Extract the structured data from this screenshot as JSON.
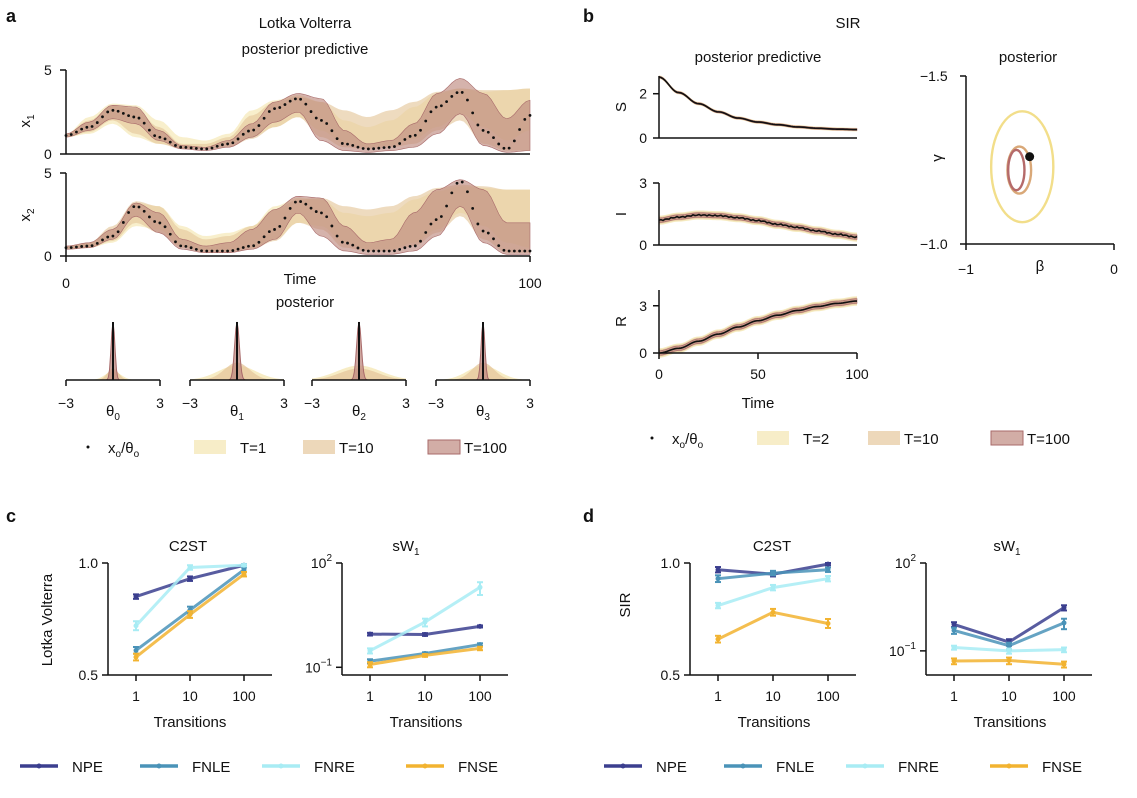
{
  "panels": {
    "a": {
      "letter": "a",
      "title": "Lotka Volterra",
      "subtitle": "posterior predictive",
      "xlabel": "Time",
      "posterior_title": "posterior",
      "y_labels": [
        "x",
        "x"
      ],
      "y_label_subs": [
        "1",
        "2"
      ],
      "x_ticks": [
        "0",
        "100"
      ],
      "theta_labels": [
        "θ",
        "θ",
        "θ",
        "θ"
      ],
      "theta_subs": [
        "0",
        "1",
        "2",
        "3"
      ],
      "theta_ticks": [
        "−3",
        "3"
      ],
      "legend": {
        "obs": "x",
        "obs_sub": "o",
        "obs_sep": "/θ",
        "obs_sub2": "o",
        "items": [
          "T=1",
          "T=10",
          "T=100"
        ]
      }
    },
    "b": {
      "letter": "b",
      "title": "SIR",
      "subtitle": "posterior predictive",
      "posterior_title": "posterior",
      "xlabel": "Time",
      "y_labels": [
        "S",
        "I",
        "R"
      ],
      "x_ticks": [
        "0",
        "50",
        "100"
      ],
      "gamma_label": "γ",
      "beta_label": "β",
      "legend": {
        "obs": "x",
        "obs_sub": "o",
        "obs_sep": "/θ",
        "obs_sub2": "o",
        "items": [
          "T=2",
          "T=10",
          "T=100"
        ]
      }
    },
    "c": {
      "letter": "c",
      "ylabel": "Lotka Volterra",
      "xlabel": "Transitions",
      "c2st_title": "C2ST",
      "sw_title": "sW",
      "sw_sub": "1"
    },
    "d": {
      "letter": "d",
      "ylabel": "SIR",
      "xlabel": "Transitions",
      "c2st_title": "C2ST",
      "sw_title": "sW",
      "sw_sub": "1"
    }
  },
  "method_legend": [
    "NPE",
    "FNLE",
    "FNRE",
    "FNSE"
  ],
  "colors": {
    "NPE": "#3b3f8f",
    "FNLE": "#4a93b8",
    "FNRE": "#a8ecf4",
    "FNSE": "#f2b330",
    "band_light": "#f4e6b0",
    "band_mid": "#e5c79c",
    "band_dark": "#bf8a80",
    "band_dark_edge": "#a86a6a",
    "observed": "#111111"
  },
  "chart_data": [
    {
      "id": "a-x1",
      "type": "area",
      "ylabel": "x1",
      "xlim": [
        0,
        100
      ],
      "ylim": [
        0,
        5
      ],
      "y_ticks": [
        0,
        5
      ],
      "x": [
        0,
        5,
        10,
        15,
        20,
        25,
        30,
        35,
        40,
        45,
        50,
        55,
        60,
        65,
        70,
        75,
        80,
        85,
        90,
        95,
        100
      ],
      "observed": [
        1.1,
        1.6,
        2.6,
        2.2,
        1.0,
        0.4,
        0.3,
        0.6,
        1.4,
        2.7,
        3.3,
        2.0,
        0.6,
        0.3,
        0.4,
        1.1,
        2.8,
        3.7,
        1.4,
        0.3,
        2.3
      ],
      "bands": [
        {
          "name": "T=1",
          "low": [
            1.0,
            1.2,
            1.8,
            1.0,
            0.6,
            0.4,
            0.4,
            0.6,
            1.0,
            1.6,
            2.2,
            1.4,
            0.6,
            0.4,
            0.5,
            0.9,
            1.6,
            2.4,
            1.6,
            0.8,
            1.4
          ],
          "high": [
            1.2,
            2.2,
            3.0,
            2.9,
            2.0,
            1.0,
            0.8,
            1.2,
            2.6,
            3.2,
            3.5,
            3.1,
            2.0,
            1.6,
            2.0,
            2.8,
            3.6,
            3.9,
            3.7,
            3.8,
            3.9
          ]
        },
        {
          "name": "T=10",
          "low": [
            1.0,
            1.3,
            2.0,
            1.2,
            0.6,
            0.3,
            0.3,
            0.4,
            0.9,
            1.6,
            2.2,
            1.0,
            0.4,
            0.3,
            0.4,
            0.6,
            1.4,
            2.0,
            0.6,
            0.2,
            0.2
          ],
          "high": [
            1.2,
            2.0,
            2.9,
            2.7,
            1.6,
            0.6,
            0.6,
            1.0,
            2.3,
            3.1,
            3.4,
            3.1,
            2.6,
            2.2,
            2.6,
            3.1,
            3.7,
            3.9,
            3.8,
            3.8,
            3.9
          ]
        },
        {
          "name": "T=100",
          "low": [
            1.0,
            1.4,
            2.1,
            1.8,
            0.8,
            0.3,
            0.2,
            0.4,
            1.0,
            1.9,
            2.5,
            0.8,
            0.2,
            0.1,
            0.2,
            0.4,
            1.2,
            2.4,
            0.5,
            0.1,
            0.2
          ],
          "high": [
            1.2,
            1.9,
            2.9,
            2.8,
            1.4,
            0.5,
            0.4,
            0.8,
            1.8,
            3.1,
            3.6,
            3.3,
            1.4,
            0.6,
            0.8,
            1.8,
            3.6,
            4.5,
            3.6,
            2.1,
            3.2
          ]
        }
      ]
    },
    {
      "id": "a-x2",
      "type": "area",
      "ylabel": "x2",
      "xlim": [
        0,
        100
      ],
      "ylim": [
        0,
        5
      ],
      "y_ticks": [
        0,
        5
      ],
      "x": [
        0,
        5,
        10,
        15,
        20,
        25,
        30,
        35,
        40,
        45,
        50,
        55,
        60,
        65,
        70,
        75,
        80,
        85,
        90,
        95,
        100
      ],
      "observed": [
        0.5,
        0.6,
        1.2,
        3.0,
        2.0,
        0.6,
        0.3,
        0.3,
        0.6,
        1.6,
        3.3,
        2.6,
        0.8,
        0.3,
        0.3,
        0.6,
        2.2,
        4.5,
        1.5,
        0.3,
        0.3
      ],
      "bands": [
        {
          "name": "T=1",
          "low": [
            0.4,
            0.5,
            0.8,
            1.8,
            1.6,
            0.6,
            0.3,
            0.3,
            0.5,
            1.0,
            2.0,
            1.8,
            0.8,
            0.4,
            0.4,
            0.8,
            1.6,
            2.6,
            1.8,
            0.8,
            0.5
          ],
          "high": [
            0.6,
            0.8,
            1.6,
            3.2,
            3.0,
            1.8,
            1.2,
            1.4,
            1.8,
            3.0,
            3.5,
            3.4,
            2.6,
            2.4,
            2.6,
            3.4,
            3.9,
            4.2,
            4.1,
            4.0,
            4.0
          ]
        },
        {
          "name": "T=10",
          "low": [
            0.4,
            0.5,
            0.9,
            2.0,
            1.4,
            0.5,
            0.2,
            0.2,
            0.4,
            0.9,
            2.0,
            1.6,
            0.5,
            0.3,
            0.3,
            0.6,
            1.4,
            2.4,
            1.0,
            0.2,
            0.2
          ],
          "high": [
            0.6,
            0.8,
            1.8,
            3.3,
            3.0,
            1.6,
            1.0,
            1.2,
            1.8,
            2.8,
            3.4,
            3.5,
            3.0,
            2.8,
            3.0,
            3.6,
            4.1,
            4.3,
            4.2,
            4.0,
            4.0
          ]
        },
        {
          "name": "T=100",
          "low": [
            0.4,
            0.5,
            1.0,
            2.4,
            1.4,
            0.4,
            0.2,
            0.2,
            0.4,
            1.0,
            2.6,
            1.2,
            0.3,
            0.1,
            0.1,
            0.3,
            1.2,
            3.0,
            0.8,
            0.1,
            0.1
          ],
          "high": [
            0.6,
            0.8,
            1.6,
            3.2,
            2.6,
            1.0,
            0.6,
            0.8,
            1.6,
            2.8,
            3.6,
            3.5,
            1.8,
            0.8,
            1.0,
            2.6,
            4.0,
            4.6,
            4.0,
            2.0,
            2.0
          ]
        }
      ]
    },
    {
      "id": "a-posterior",
      "type": "area",
      "xlim": [
        -3,
        3
      ],
      "x_ticks": [
        -3,
        3
      ],
      "params": [
        "θ0",
        "θ1",
        "θ2",
        "θ3"
      ],
      "modes": [
        0.0,
        0.0,
        0.0,
        0.0
      ],
      "bands": [
        {
          "name": "T=1",
          "widths": [
            0.5,
            1.2,
            1.4,
            1.0
          ],
          "heights": [
            0.15,
            0.25,
            0.25,
            0.25
          ]
        },
        {
          "name": "T=10",
          "widths": [
            0.35,
            0.8,
            1.2,
            0.7
          ],
          "heights": [
            0.2,
            0.3,
            0.2,
            0.3
          ]
        },
        {
          "name": "T=100",
          "widths": [
            0.12,
            0.15,
            0.15,
            0.12
          ],
          "heights": [
            1.0,
            1.0,
            1.0,
            1.0
          ]
        }
      ]
    },
    {
      "id": "b-S",
      "type": "area",
      "ylabel": "S",
      "xlim": [
        0,
        100
      ],
      "ylim": [
        0,
        2.8
      ],
      "y_ticks": [
        0,
        2
      ],
      "x": [
        0,
        10,
        20,
        30,
        40,
        50,
        60,
        70,
        80,
        90,
        100
      ],
      "observed": [
        2.75,
        2.05,
        1.55,
        1.18,
        0.9,
        0.72,
        0.6,
        0.5,
        0.44,
        0.4,
        0.38
      ],
      "band_width": 0.08
    },
    {
      "id": "b-I",
      "type": "area",
      "ylabel": "I",
      "xlim": [
        0,
        100
      ],
      "ylim": [
        0,
        3
      ],
      "y_ticks": [
        0,
        3
      ],
      "x": [
        0,
        10,
        20,
        30,
        40,
        50,
        60,
        70,
        80,
        90,
        100
      ],
      "observed": [
        1.2,
        1.35,
        1.45,
        1.42,
        1.32,
        1.18,
        1.0,
        0.85,
        0.68,
        0.52,
        0.38
      ],
      "band_width": 0.22
    },
    {
      "id": "b-R",
      "type": "area",
      "ylabel": "R",
      "xlim": [
        0,
        100
      ],
      "ylim": [
        0,
        4
      ],
      "y_ticks": [
        0,
        3
      ],
      "x_ticks": [
        0,
        50,
        100
      ],
      "x": [
        0,
        10,
        20,
        30,
        40,
        50,
        60,
        70,
        80,
        90,
        100
      ],
      "observed": [
        0.0,
        0.3,
        0.75,
        1.2,
        1.65,
        2.05,
        2.4,
        2.7,
        2.95,
        3.15,
        3.3
      ],
      "band_width": 0.3
    },
    {
      "id": "b-posterior",
      "type": "scatter",
      "x_ticks": [
        -1,
        0
      ],
      "y_ticks": [
        -1.5,
        -1.0
      ],
      "xlim": [
        -1,
        0
      ],
      "ylim": [
        -1.0,
        -1.5
      ],
      "true_point": {
        "beta": -0.57,
        "gamma": -1.26
      },
      "contours": [
        {
          "name": "T=2",
          "beta": -0.62,
          "gamma": -1.23,
          "rx": 0.21,
          "ry": 0.165
        },
        {
          "name": "T=10",
          "beta": -0.64,
          "gamma": -1.22,
          "rx": 0.08,
          "ry": 0.07
        },
        {
          "name": "T=100",
          "beta": -0.66,
          "gamma": -1.22,
          "rx": 0.055,
          "ry": 0.06
        }
      ]
    },
    {
      "id": "c-c2st",
      "type": "line",
      "title": "C2ST",
      "ylabel": "Lotka Volterra",
      "xlabel": "Transitions",
      "categories": [
        "1",
        "10",
        "100"
      ],
      "ylim": [
        0.5,
        1.0
      ],
      "y_ticks": [
        0.5,
        1.0
      ],
      "series": [
        {
          "name": "NPE",
          "values": [
            0.85,
            0.93,
            0.99
          ],
          "err": [
            0.01,
            0.01,
            0.005
          ]
        },
        {
          "name": "FNLE",
          "values": [
            0.61,
            0.79,
            0.97
          ],
          "err": [
            0.015,
            0.015,
            0.01
          ]
        },
        {
          "name": "FNRE",
          "values": [
            0.72,
            0.98,
            0.99
          ],
          "err": [
            0.02,
            0.01,
            0.005
          ]
        },
        {
          "name": "FNSE",
          "values": [
            0.58,
            0.77,
            0.95
          ],
          "err": [
            0.015,
            0.015,
            0.01
          ]
        }
      ]
    },
    {
      "id": "c-sw",
      "type": "line",
      "title": "sW1",
      "xlabel": "Transitions",
      "categories": [
        "1",
        "10",
        "100"
      ],
      "yscale": "log",
      "ylim": [
        0.06,
        100
      ],
      "y_ticks": [
        0.1,
        100
      ],
      "series": [
        {
          "name": "NPE",
          "values": [
            0.9,
            0.88,
            1.5
          ],
          "err": [
            0.08,
            0.08,
            0.1
          ]
        },
        {
          "name": "FNLE",
          "values": [
            0.15,
            0.25,
            0.45
          ],
          "err": [
            0.02,
            0.02,
            0.04
          ]
        },
        {
          "name": "FNRE",
          "values": [
            0.3,
            2.0,
            20.0
          ],
          "err": [
            0.05,
            0.5,
            8.0
          ]
        },
        {
          "name": "FNSE",
          "values": [
            0.12,
            0.22,
            0.35
          ],
          "err": [
            0.02,
            0.02,
            0.04
          ]
        }
      ]
    },
    {
      "id": "d-c2st",
      "type": "line",
      "title": "C2ST",
      "ylabel": "SIR",
      "xlabel": "Transitions",
      "categories": [
        "1",
        "10",
        "100"
      ],
      "ylim": [
        0.5,
        1.0
      ],
      "y_ticks": [
        0.5,
        1.0
      ],
      "series": [
        {
          "name": "NPE",
          "values": [
            0.97,
            0.95,
            0.995
          ],
          "err": [
            0.012,
            0.01,
            0.005
          ]
        },
        {
          "name": "FNLE",
          "values": [
            0.93,
            0.955,
            0.97
          ],
          "err": [
            0.015,
            0.01,
            0.01
          ]
        },
        {
          "name": "FNRE",
          "values": [
            0.81,
            0.89,
            0.93
          ],
          "err": [
            0.012,
            0.012,
            0.012
          ]
        },
        {
          "name": "FNSE",
          "values": [
            0.66,
            0.78,
            0.73
          ],
          "err": [
            0.015,
            0.015,
            0.02
          ]
        }
      ]
    },
    {
      "id": "d-sw",
      "type": "line",
      "title": "sW1",
      "xlabel": "Transitions",
      "categories": [
        "1",
        "10",
        "100"
      ],
      "yscale": "log",
      "ylim": [
        0.015,
        100
      ],
      "y_ticks": [
        0.1,
        100
      ],
      "series": [
        {
          "name": "NPE",
          "values": [
            0.8,
            0.2,
            3.0
          ],
          "err": [
            0.15,
            0.05,
            0.6
          ]
        },
        {
          "name": "FNLE",
          "values": [
            0.5,
            0.15,
            0.9
          ],
          "err": [
            0.12,
            0.04,
            0.35
          ]
        },
        {
          "name": "FNRE",
          "values": [
            0.13,
            0.1,
            0.11
          ],
          "err": [
            0.02,
            0.02,
            0.02
          ]
        },
        {
          "name": "FNSE",
          "values": [
            0.045,
            0.047,
            0.035
          ],
          "err": [
            0.01,
            0.012,
            0.008
          ]
        }
      ]
    }
  ]
}
